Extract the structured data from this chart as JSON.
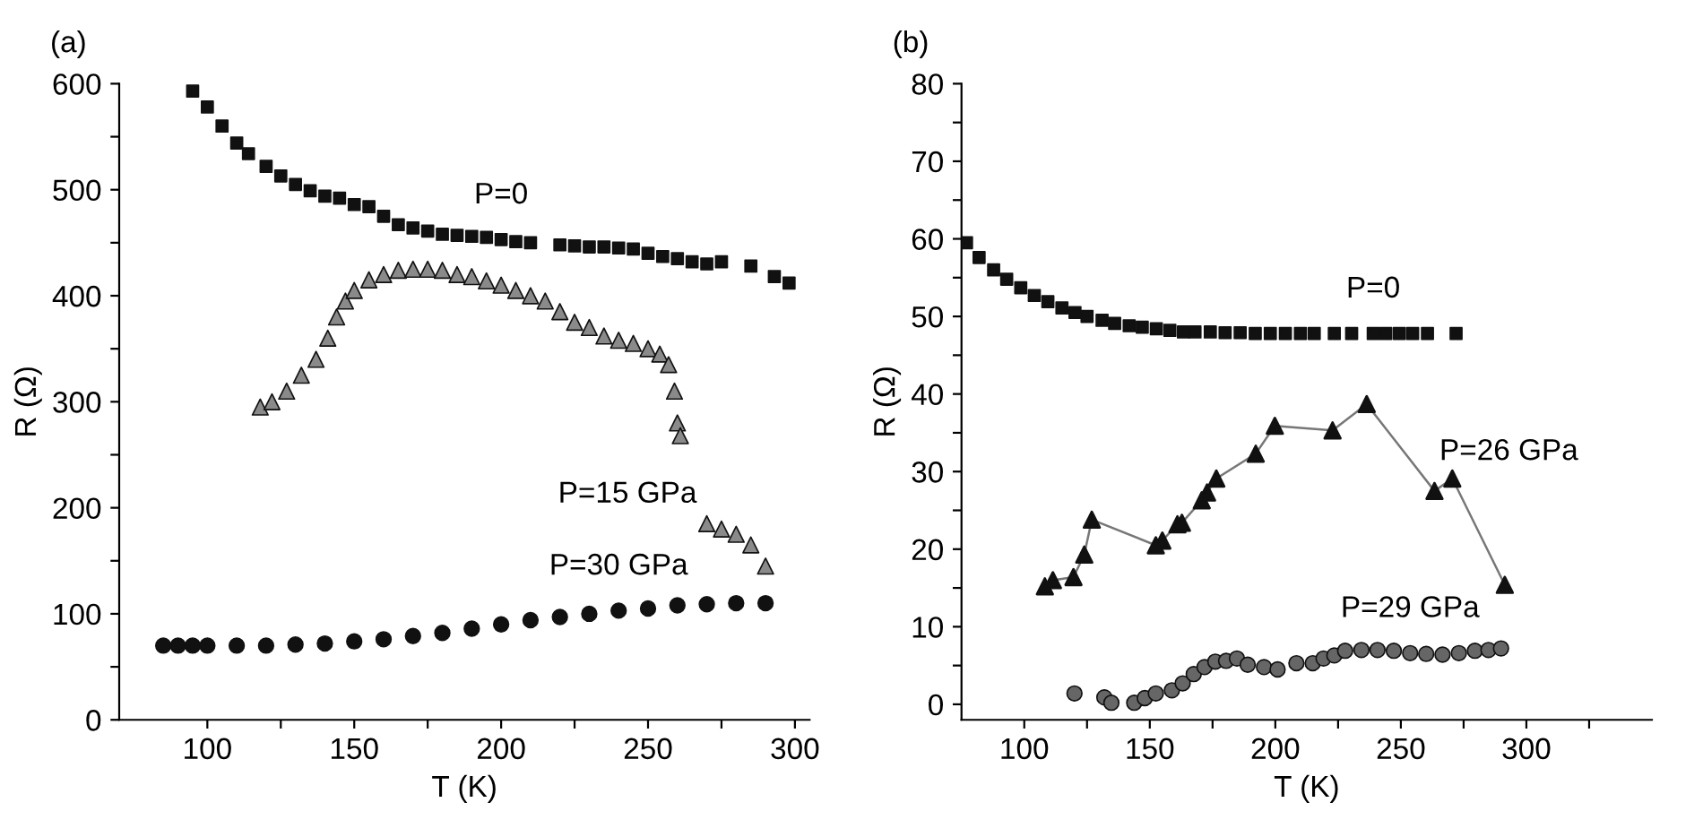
{
  "chart_data": [
    {
      "type": "scatter",
      "xlabel": "T (K)",
      "ylabel": "R (Ω)",
      "annotations": [
        "(a)"
      ],
      "xlim": [
        70,
        305
      ],
      "ylim": [
        0,
        600
      ],
      "xticks": [
        100,
        {
          "value": 125,
          "label": null
        },
        150,
        {
          "value": 175,
          "label": null
        },
        200,
        {
          "value": 225,
          "label": null
        },
        250,
        {
          "value": 275,
          "label": null
        },
        300
      ],
      "yticks": [
        0,
        {
          "value": 50,
          "label": null
        },
        100,
        {
          "value": 150,
          "label": null
        },
        200,
        {
          "value": 250,
          "label": null
        },
        300,
        {
          "value": 350,
          "label": null
        },
        400,
        {
          "value": 450,
          "label": null
        },
        500,
        {
          "value": 550,
          "label": null
        },
        600
      ],
      "grid": false,
      "series": [
        {
          "name": "P=0",
          "marker": "square",
          "color": "#111111",
          "x": [
            95,
            100,
            105,
            110,
            114,
            120,
            125,
            130,
            135,
            140,
            145,
            150,
            155,
            160,
            165,
            170,
            175,
            180,
            185,
            190,
            195,
            200,
            205,
            210,
            220,
            225,
            230,
            235,
            240,
            245,
            250,
            255,
            260,
            265,
            270,
            275,
            285,
            293,
            298
          ],
          "values": [
            593,
            578,
            560,
            544,
            534,
            522,
            513,
            505,
            499,
            494,
            492,
            486,
            484,
            475,
            467,
            464,
            461,
            458,
            457,
            456,
            455,
            453,
            451,
            450,
            448,
            447,
            446,
            446,
            445,
            444,
            440,
            437,
            435,
            432,
            430,
            432,
            428,
            418,
            412
          ]
        },
        {
          "name": "P=15 GPa",
          "marker": "triangle",
          "color": "#8a8a8a",
          "x": [
            118,
            122,
            127,
            132,
            137,
            141,
            144,
            147,
            150,
            155,
            160,
            165,
            170,
            175,
            180,
            185,
            190,
            195,
            200,
            205,
            210,
            215,
            220,
            225,
            230,
            235,
            240,
            245,
            250,
            254,
            257,
            259,
            260,
            261,
            270,
            275,
            280,
            285,
            290
          ],
          "values": [
            295,
            300,
            310,
            325,
            340,
            360,
            380,
            395,
            405,
            415,
            420,
            424,
            425,
            425,
            424,
            420,
            418,
            414,
            410,
            405,
            400,
            395,
            385,
            375,
            370,
            362,
            358,
            355,
            350,
            345,
            335,
            310,
            280,
            268,
            185,
            180,
            175,
            165,
            145
          ]
        },
        {
          "name": "P=30 GPa",
          "marker": "circle",
          "color": "#111111",
          "x": [
            85,
            90,
            95,
            100,
            110,
            120,
            130,
            140,
            150,
            160,
            170,
            180,
            190,
            200,
            210,
            220,
            230,
            240,
            250,
            260,
            270,
            280,
            290
          ],
          "values": [
            70,
            70,
            70,
            70,
            70,
            70,
            71,
            72,
            74,
            76,
            79,
            82,
            86,
            90,
            94,
            97,
            100,
            103,
            105,
            108,
            109,
            110,
            110
          ]
        }
      ]
    },
    {
      "type": "scatter",
      "xlabel": "T (K)",
      "ylabel": "R (Ω)",
      "annotations": [
        "(b)"
      ],
      "xlim": [
        75,
        350
      ],
      "ylim": [
        -2,
        80
      ],
      "xticks": [
        100,
        {
          "value": 125,
          "label": null
        },
        150,
        {
          "value": 175,
          "label": null
        },
        200,
        {
          "value": 225,
          "label": null
        },
        250,
        {
          "value": 275,
          "label": null
        },
        300,
        {
          "value": 325,
          "label": null
        }
      ],
      "yticks": [
        0,
        {
          "value": 5,
          "label": null
        },
        10,
        {
          "value": 15,
          "label": null
        },
        20,
        {
          "value": 25,
          "label": null
        },
        30,
        {
          "value": 35,
          "label": null
        },
        40,
        {
          "value": 45,
          "label": null
        },
        50,
        {
          "value": 55,
          "label": null
        },
        60,
        {
          "value": 65,
          "label": null
        },
        70,
        {
          "value": 75,
          "label": null
        },
        80
      ],
      "grid": false,
      "series": [
        {
          "name": "P=0",
          "marker": "square",
          "color": "#111111",
          "x": [
            77,
            82,
            87.8,
            93,
            98.6,
            104,
            109.4,
            115,
            120.2,
            125,
            131,
            136,
            141.8,
            147,
            152.6,
            158,
            163.4,
            168,
            174.1,
            180,
            186,
            192,
            198,
            204,
            210,
            215.5,
            223.5,
            230.4,
            239,
            244,
            249.4,
            254.7,
            260.6,
            272
          ],
          "values": [
            59.5,
            57.6,
            56.0,
            54.8,
            53.7,
            52.7,
            51.9,
            51.1,
            50.5,
            50.0,
            49.5,
            49.1,
            48.8,
            48.6,
            48.4,
            48.2,
            48.0,
            48.0,
            48.0,
            47.9,
            47.9,
            47.8,
            47.8,
            47.8,
            47.8,
            47.8,
            47.8,
            47.8,
            47.8,
            47.8,
            47.8,
            47.8,
            47.8,
            47.8
          ]
        },
        {
          "name": "P=26 GPa",
          "type": "line",
          "marker": "triangle",
          "color": "#111111",
          "x": [
            108.2,
            111.4,
            119.6,
            123.9,
            126.9,
            152.4,
            155,
            161,
            162.8,
            170.7,
            172.8,
            176.5,
            192.2,
            199.8,
            222.8,
            236.4,
            263.4,
            270.5,
            291.4
          ],
          "values": [
            15.2,
            16.0,
            16.4,
            19.3,
            23.8,
            20.5,
            21.1,
            23.2,
            23.4,
            26.3,
            27.3,
            29.1,
            32.3,
            35.9,
            35.3,
            38.7,
            27.5,
            29.1,
            15.4
          ]
        },
        {
          "name": "P=29 GPa",
          "marker": "circle",
          "color": "#666666",
          "x": [
            120,
            131.9,
            134.7,
            143.8,
            148,
            152.4,
            158.8,
            163.1,
            167.5,
            171.8,
            176.1,
            180.4,
            184.7,
            189,
            195.5,
            200.9,
            208.4,
            214.9,
            219.2,
            223.5,
            227.8,
            234.3,
            240.7,
            247.2,
            253.7,
            260.1,
            266.6,
            273.1,
            279.5,
            284.9,
            289.9
          ],
          "values": [
            1.4,
            0.9,
            0.2,
            0.2,
            0.8,
            1.4,
            1.8,
            2.7,
            3.9,
            4.8,
            5.5,
            5.6,
            5.9,
            5.1,
            4.8,
            4.5,
            5.3,
            5.3,
            5.9,
            6.3,
            6.9,
            7.0,
            7.0,
            6.9,
            6.6,
            6.5,
            6.4,
            6.6,
            6.9,
            7.0,
            7.2
          ]
        }
      ]
    }
  ]
}
